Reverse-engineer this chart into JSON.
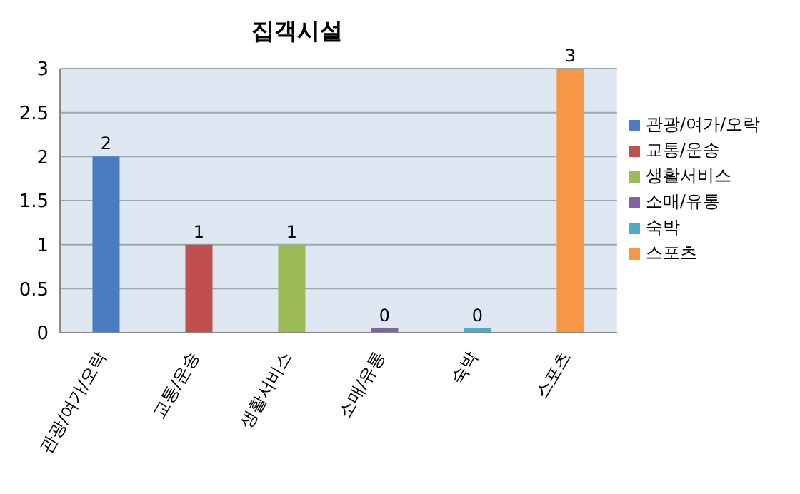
{
  "chart_data": {
    "type": "bar",
    "title": "집객시설",
    "categories": [
      "관광/여가/오락",
      "교통/운송",
      "생활서비스",
      "소매/유통",
      "숙박",
      "스포츠"
    ],
    "series": [
      {
        "name": "관광/여가/오락",
        "color": "#4a7cc0",
        "values": [
          2,
          null,
          null,
          null,
          null,
          null
        ]
      },
      {
        "name": "교통/운송",
        "color": "#c0504d",
        "values": [
          null,
          1,
          null,
          null,
          null,
          null
        ]
      },
      {
        "name": "생활서비스",
        "color": "#9bbb59",
        "values": [
          null,
          null,
          1,
          null,
          null,
          null
        ]
      },
      {
        "name": "소매/유통",
        "color": "#8064a2",
        "values": [
          null,
          null,
          null,
          0,
          null,
          null
        ]
      },
      {
        "name": "숙박",
        "color": "#4bacc6",
        "values": [
          null,
          null,
          null,
          null,
          0,
          null
        ]
      },
      {
        "name": "스포츠",
        "color": "#f79646",
        "values": [
          null,
          null,
          null,
          null,
          null,
          3
        ]
      }
    ],
    "ylim": [
      0,
      3
    ],
    "yticks": [
      0,
      0.5,
      1,
      1.5,
      2,
      2.5,
      3
    ],
    "grid": "y",
    "legend": "right",
    "data_labels": true
  }
}
